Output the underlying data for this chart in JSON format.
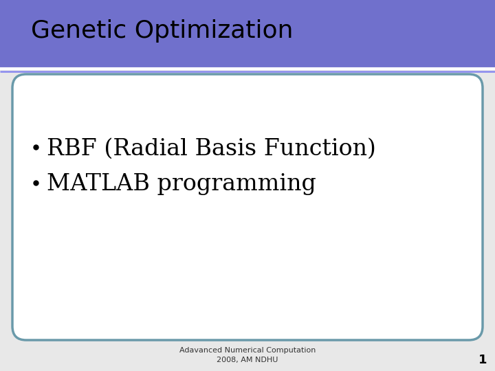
{
  "bg_color": "#e8e8e8",
  "slide_bg": "#e8e8e8",
  "header_bg": "#7070cc",
  "header_text": "Genetic Optimization",
  "header_text_color": "#000000",
  "header_font_size": 26,
  "divider_color": "#ffffff",
  "content_border_color": "#6a9aaa",
  "content_bg": "#ffffff",
  "bullet_items": [
    "RBF (Radial Basis Function)",
    "MATLAB programming"
  ],
  "bullet_font_size": 24,
  "bullet_color": "#000000",
  "footer_text_line1": "Adavanced Numerical Computation",
  "footer_text_line2": "2008, AM NDHU",
  "footer_font_size": 8,
  "footer_color": "#333333",
  "page_number": "1",
  "page_number_font_size": 13,
  "page_number_color": "#000000"
}
